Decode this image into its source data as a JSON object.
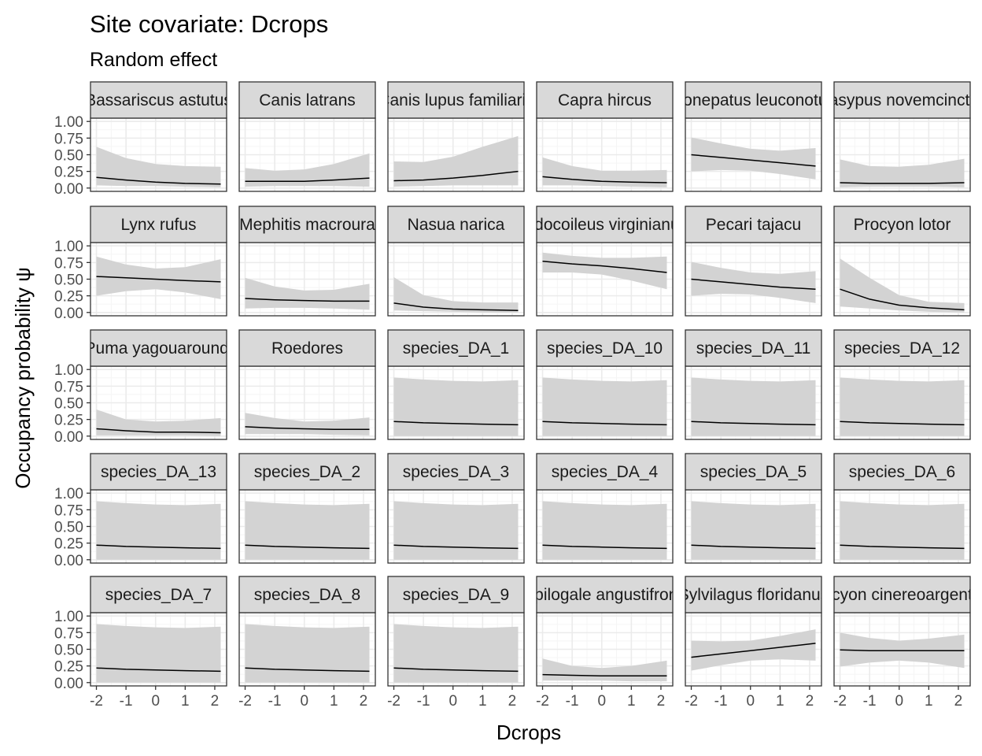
{
  "chart_data": {
    "type": "line",
    "title": "Site covariate: Dcrops",
    "subtitle": "Random effect",
    "xlabel": "Dcrops",
    "ylabel": "Occupancy probability  ψ",
    "xlim": [
      -2.2,
      2.4
    ],
    "ylim": [
      -0.05,
      1.05
    ],
    "x_ticks": [
      -2,
      -1,
      0,
      1,
      2
    ],
    "x_tick_labels": [
      "-2",
      "-1",
      "0",
      "1",
      "2"
    ],
    "y_ticks": [
      0,
      0.25,
      0.5,
      0.75,
      1
    ],
    "y_tick_labels": [
      "0.00",
      "0.25",
      "0.50",
      "0.75",
      "1.00"
    ],
    "grid": true,
    "facets": "5 rows x 6 columns",
    "x": [
      -2,
      -1,
      0,
      1,
      2.2
    ],
    "series": [
      {
        "name": "Bassariscus astutus",
        "values": [
          0.16,
          0.12,
          0.09,
          0.07,
          0.06
        ],
        "lower": [
          0.04,
          0.03,
          0.03,
          0.02,
          0.01
        ],
        "upper": [
          0.62,
          0.45,
          0.36,
          0.33,
          0.32
        ]
      },
      {
        "name": "Canis latrans",
        "values": [
          0.1,
          0.1,
          0.1,
          0.12,
          0.15
        ],
        "lower": [
          0.02,
          0.03,
          0.03,
          0.03,
          0.02
        ],
        "upper": [
          0.3,
          0.26,
          0.28,
          0.36,
          0.52
        ]
      },
      {
        "name": "Canis lupus familiaris",
        "values": [
          0.11,
          0.12,
          0.15,
          0.19,
          0.25
        ],
        "lower": [
          0.02,
          0.03,
          0.04,
          0.04,
          0.04
        ],
        "upper": [
          0.4,
          0.39,
          0.47,
          0.62,
          0.78
        ]
      },
      {
        "name": "Capra hircus",
        "values": [
          0.17,
          0.13,
          0.1,
          0.09,
          0.08
        ],
        "lower": [
          0.04,
          0.04,
          0.03,
          0.02,
          0.01
        ],
        "upper": [
          0.46,
          0.33,
          0.26,
          0.26,
          0.27
        ]
      },
      {
        "name": "Conepatus leuconotus",
        "values": [
          0.5,
          0.46,
          0.42,
          0.38,
          0.33
        ],
        "lower": [
          0.25,
          0.27,
          0.26,
          0.21,
          0.13
        ],
        "upper": [
          0.76,
          0.67,
          0.59,
          0.56,
          0.6
        ]
      },
      {
        "name": "Dasypus novemcinctus",
        "values": [
          0.08,
          0.07,
          0.07,
          0.07,
          0.08
        ],
        "lower": [
          0.01,
          0.02,
          0.02,
          0.02,
          0.01
        ],
        "upper": [
          0.43,
          0.33,
          0.32,
          0.35,
          0.44
        ]
      },
      {
        "name": "Lynx rufus",
        "values": [
          0.54,
          0.52,
          0.5,
          0.48,
          0.46
        ],
        "lower": [
          0.25,
          0.32,
          0.35,
          0.3,
          0.2
        ],
        "upper": [
          0.84,
          0.72,
          0.66,
          0.68,
          0.8
        ]
      },
      {
        "name": "Mephitis macroura",
        "values": [
          0.21,
          0.19,
          0.18,
          0.17,
          0.17
        ],
        "lower": [
          0.06,
          0.07,
          0.07,
          0.06,
          0.04
        ],
        "upper": [
          0.52,
          0.39,
          0.33,
          0.34,
          0.43
        ]
      },
      {
        "name": "Nasua narica",
        "values": [
          0.14,
          0.08,
          0.05,
          0.04,
          0.03
        ],
        "lower": [
          0.03,
          0.02,
          0.01,
          0.0,
          0.0
        ],
        "upper": [
          0.53,
          0.26,
          0.17,
          0.15,
          0.15
        ]
      },
      {
        "name": "Odocoileus virginianus",
        "values": [
          0.77,
          0.73,
          0.7,
          0.66,
          0.6
        ],
        "lower": [
          0.6,
          0.6,
          0.57,
          0.48,
          0.35
        ],
        "upper": [
          0.9,
          0.85,
          0.82,
          0.82,
          0.84
        ]
      },
      {
        "name": "Pecari tajacu",
        "values": [
          0.5,
          0.46,
          0.42,
          0.38,
          0.35
        ],
        "lower": [
          0.25,
          0.28,
          0.27,
          0.22,
          0.14
        ],
        "upper": [
          0.76,
          0.67,
          0.6,
          0.58,
          0.62
        ]
      },
      {
        "name": "Procyon lotor",
        "values": [
          0.35,
          0.2,
          0.11,
          0.07,
          0.04
        ],
        "lower": [
          0.09,
          0.06,
          0.03,
          0.01,
          0.0
        ],
        "upper": [
          0.81,
          0.52,
          0.26,
          0.16,
          0.14
        ]
      },
      {
        "name": "Puma yagouaroundi",
        "values": [
          0.11,
          0.08,
          0.06,
          0.06,
          0.05
        ],
        "lower": [
          0.01,
          0.01,
          0.01,
          0.01,
          0.0
        ],
        "upper": [
          0.4,
          0.25,
          0.22,
          0.23,
          0.27
        ]
      },
      {
        "name": "Roedores",
        "values": [
          0.14,
          0.12,
          0.11,
          0.1,
          0.1
        ],
        "lower": [
          0.03,
          0.03,
          0.03,
          0.02,
          0.01
        ],
        "upper": [
          0.35,
          0.27,
          0.22,
          0.23,
          0.28
        ]
      },
      {
        "name": "species_DA_1",
        "values": [
          0.22,
          0.2,
          0.19,
          0.18,
          0.17
        ],
        "lower": [
          0.0,
          0.0,
          0.0,
          0.0,
          0.0
        ],
        "upper": [
          0.88,
          0.85,
          0.83,
          0.82,
          0.84
        ]
      },
      {
        "name": "species_DA_10",
        "values": [
          0.22,
          0.2,
          0.19,
          0.18,
          0.17
        ],
        "lower": [
          0.0,
          0.0,
          0.0,
          0.0,
          0.0
        ],
        "upper": [
          0.88,
          0.85,
          0.83,
          0.82,
          0.84
        ]
      },
      {
        "name": "species_DA_11",
        "values": [
          0.22,
          0.2,
          0.19,
          0.18,
          0.17
        ],
        "lower": [
          0.0,
          0.0,
          0.0,
          0.0,
          0.0
        ],
        "upper": [
          0.88,
          0.85,
          0.83,
          0.82,
          0.84
        ]
      },
      {
        "name": "species_DA_12",
        "values": [
          0.22,
          0.2,
          0.19,
          0.18,
          0.17
        ],
        "lower": [
          0.0,
          0.0,
          0.0,
          0.0,
          0.0
        ],
        "upper": [
          0.88,
          0.85,
          0.83,
          0.82,
          0.84
        ]
      },
      {
        "name": "species_DA_13",
        "values": [
          0.22,
          0.2,
          0.19,
          0.18,
          0.17
        ],
        "lower": [
          0.0,
          0.0,
          0.0,
          0.0,
          0.0
        ],
        "upper": [
          0.88,
          0.85,
          0.83,
          0.82,
          0.84
        ]
      },
      {
        "name": "species_DA_2",
        "values": [
          0.22,
          0.2,
          0.19,
          0.18,
          0.17
        ],
        "lower": [
          0.0,
          0.0,
          0.0,
          0.0,
          0.0
        ],
        "upper": [
          0.88,
          0.85,
          0.83,
          0.82,
          0.84
        ]
      },
      {
        "name": "species_DA_3",
        "values": [
          0.22,
          0.2,
          0.19,
          0.18,
          0.17
        ],
        "lower": [
          0.0,
          0.0,
          0.0,
          0.0,
          0.0
        ],
        "upper": [
          0.88,
          0.85,
          0.83,
          0.82,
          0.84
        ]
      },
      {
        "name": "species_DA_4",
        "values": [
          0.22,
          0.2,
          0.19,
          0.18,
          0.17
        ],
        "lower": [
          0.0,
          0.0,
          0.0,
          0.0,
          0.0
        ],
        "upper": [
          0.88,
          0.85,
          0.83,
          0.82,
          0.84
        ]
      },
      {
        "name": "species_DA_5",
        "values": [
          0.22,
          0.2,
          0.19,
          0.18,
          0.17
        ],
        "lower": [
          0.0,
          0.0,
          0.0,
          0.0,
          0.0
        ],
        "upper": [
          0.88,
          0.85,
          0.83,
          0.82,
          0.84
        ]
      },
      {
        "name": "species_DA_6",
        "values": [
          0.22,
          0.2,
          0.19,
          0.18,
          0.17
        ],
        "lower": [
          0.0,
          0.0,
          0.0,
          0.0,
          0.0
        ],
        "upper": [
          0.88,
          0.85,
          0.83,
          0.82,
          0.84
        ]
      },
      {
        "name": "species_DA_7",
        "values": [
          0.22,
          0.2,
          0.19,
          0.18,
          0.17
        ],
        "lower": [
          0.0,
          0.0,
          0.0,
          0.0,
          0.0
        ],
        "upper": [
          0.88,
          0.85,
          0.83,
          0.82,
          0.84
        ]
      },
      {
        "name": "species_DA_8",
        "values": [
          0.22,
          0.2,
          0.19,
          0.18,
          0.17
        ],
        "lower": [
          0.0,
          0.0,
          0.0,
          0.0,
          0.0
        ],
        "upper": [
          0.88,
          0.85,
          0.83,
          0.82,
          0.84
        ]
      },
      {
        "name": "species_DA_9",
        "values": [
          0.22,
          0.2,
          0.19,
          0.18,
          0.17
        ],
        "lower": [
          0.0,
          0.0,
          0.0,
          0.0,
          0.0
        ],
        "upper": [
          0.88,
          0.85,
          0.83,
          0.82,
          0.84
        ]
      },
      {
        "name": "Spilogale angustifrons",
        "values": [
          0.12,
          0.11,
          0.1,
          0.1,
          0.1
        ],
        "lower": [
          0.03,
          0.03,
          0.03,
          0.02,
          0.02
        ],
        "upper": [
          0.36,
          0.25,
          0.22,
          0.25,
          0.33
        ]
      },
      {
        "name": "Sylvilagus floridanus",
        "values": [
          0.38,
          0.43,
          0.48,
          0.53,
          0.59
        ],
        "lower": [
          0.18,
          0.26,
          0.33,
          0.35,
          0.33
        ],
        "upper": [
          0.63,
          0.62,
          0.63,
          0.7,
          0.8
        ]
      },
      {
        "name": "Urocyon cinereoargenteus",
        "values": [
          0.49,
          0.48,
          0.48,
          0.48,
          0.48
        ],
        "lower": [
          0.24,
          0.3,
          0.33,
          0.3,
          0.22
        ],
        "upper": [
          0.75,
          0.67,
          0.63,
          0.66,
          0.72
        ]
      }
    ]
  },
  "colors": {
    "ribbon": "#d3d3d3",
    "line": "#000000",
    "strip_fill": "#d9d9d9",
    "panel_border": "#333333",
    "grid_major": "#ebebeb",
    "grid_minor": "#f5f5f5",
    "tick_text": "#4d4d4d"
  }
}
